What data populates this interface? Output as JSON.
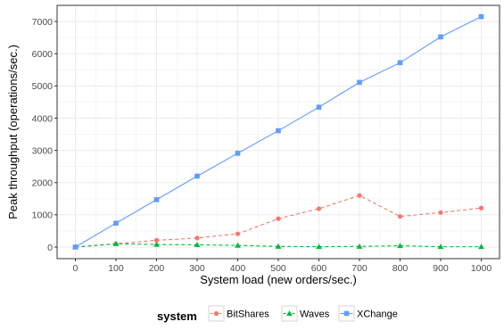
{
  "chart_data": {
    "type": "line",
    "xlabel": "System load (new orders/sec.)",
    "ylabel": "Peak throughput (operations/sec.)",
    "x": [
      0,
      100,
      200,
      300,
      400,
      500,
      600,
      700,
      800,
      900,
      1000
    ],
    "xlim": [
      -45,
      1045
    ],
    "ylim": [
      -360,
      7500
    ],
    "x_ticks": [
      0,
      100,
      200,
      300,
      400,
      500,
      600,
      700,
      800,
      900,
      1000
    ],
    "y_ticks": [
      0,
      1000,
      2000,
      3000,
      4000,
      5000,
      6000,
      7000
    ],
    "y_minor_ticks": [
      500,
      1500,
      2500,
      3500,
      4500,
      5500,
      6500
    ],
    "grid": true,
    "legend": {
      "title": "system",
      "position": "bottom"
    },
    "series": [
      {
        "name": "BitShares",
        "color": "#F8766D",
        "marker": "circle",
        "line_style": "dashed",
        "values": [
          0,
          100,
          210,
          280,
          410,
          880,
          1190,
          1600,
          950,
          1070,
          1210
        ]
      },
      {
        "name": "Waves",
        "color": "#00BA38",
        "marker": "triangle",
        "line_style": "dashed",
        "values": [
          0,
          100,
          80,
          70,
          50,
          20,
          10,
          20,
          40,
          10,
          10
        ]
      },
      {
        "name": "XChange",
        "color": "#619CFF",
        "marker": "square",
        "line_style": "solid",
        "values": [
          0,
          740,
          1470,
          2200,
          2910,
          3610,
          4340,
          5110,
          5720,
          6520,
          7150
        ]
      }
    ]
  }
}
